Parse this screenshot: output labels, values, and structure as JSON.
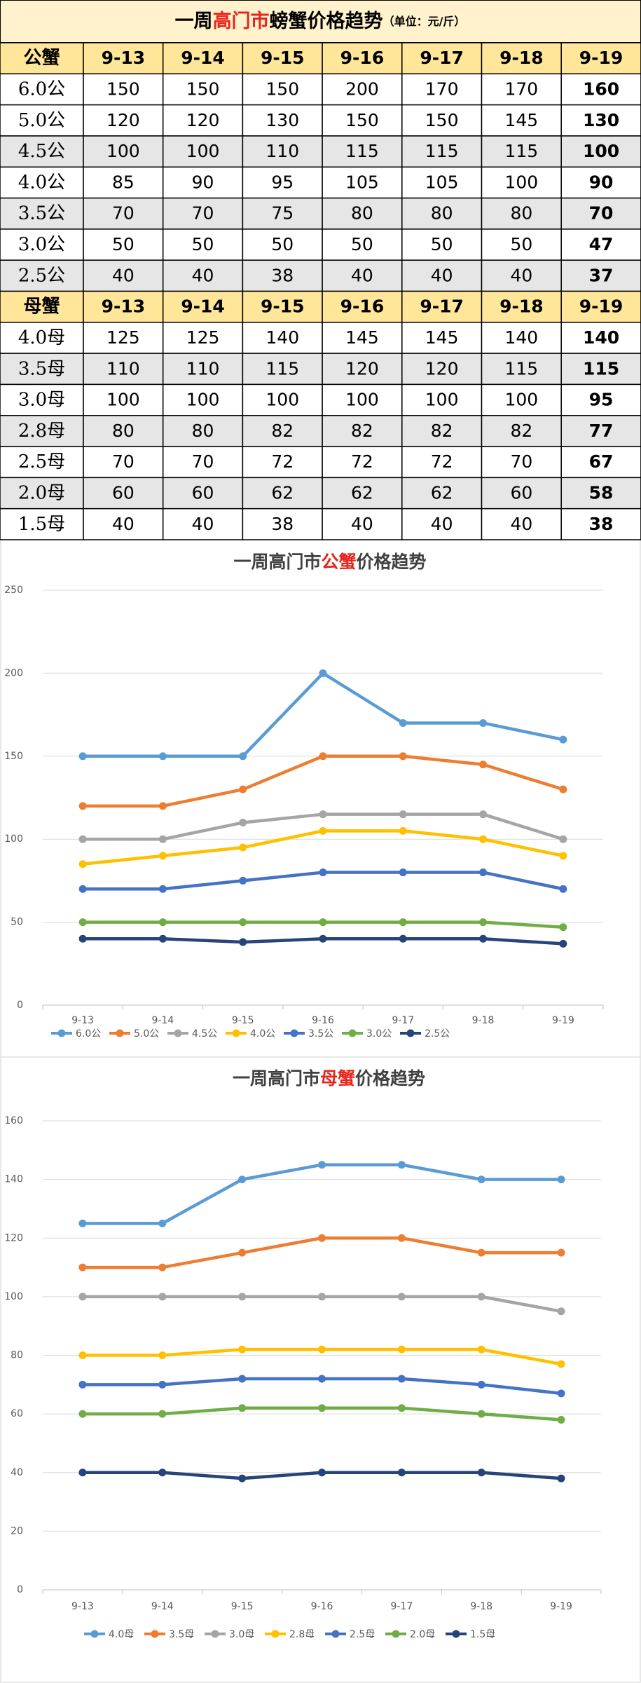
{
  "table": {
    "title_parts": [
      "一周",
      "高门市",
      "螃蟹价格趋势",
      "（单位：元/斤）"
    ],
    "rows": [
      [
        "公蟹",
        "9-13",
        "9-14",
        "9-15",
        "9-16",
        "9-17",
        "9-18",
        "9-19"
      ],
      [
        "6.0公",
        150,
        150,
        150,
        200,
        170,
        170,
        160
      ],
      [
        "5.0公",
        120,
        120,
        130,
        150,
        150,
        145,
        130
      ],
      [
        "4.5公",
        100,
        100,
        110,
        115,
        115,
        115,
        100
      ],
      [
        "4.0公",
        85,
        90,
        95,
        105,
        105,
        100,
        90
      ],
      [
        "3.5公",
        70,
        70,
        75,
        80,
        80,
        80,
        70
      ],
      [
        "3.0公",
        50,
        50,
        50,
        50,
        50,
        50,
        47
      ],
      [
        "2.5公",
        40,
        40,
        38,
        40,
        40,
        40,
        37
      ],
      [
        "母蟹",
        "9-13",
        "9-14",
        "9-15",
        "9-16",
        "9-17",
        "9-18",
        "9-19"
      ],
      [
        "4.0母",
        125,
        125,
        140,
        145,
        145,
        140,
        140
      ],
      [
        "3.5母",
        110,
        110,
        115,
        120,
        120,
        115,
        115
      ],
      [
        "3.0母",
        100,
        100,
        100,
        100,
        100,
        100,
        95
      ],
      [
        "2.8母",
        80,
        80,
        82,
        82,
        82,
        82,
        77
      ],
      [
        "2.5母",
        70,
        70,
        72,
        72,
        72,
        70,
        67
      ],
      [
        "2.0母",
        60,
        60,
        62,
        62,
        62,
        60,
        58
      ],
      [
        "1.5母",
        40,
        40,
        38,
        40,
        40,
        40,
        38
      ]
    ]
  },
  "chart_data": [
    {
      "type": "line",
      "title_parts": [
        "一周高门市",
        "公蟹",
        "价格趋势"
      ],
      "categories": [
        "9-13",
        "9-14",
        "9-15",
        "9-16",
        "9-17",
        "9-18",
        "9-19"
      ],
      "ylim": [
        0,
        250
      ],
      "yticks": [
        0,
        50,
        100,
        150,
        200,
        250
      ],
      "grid": true,
      "legend": "bottom",
      "series": [
        {
          "name": "6.0公",
          "color": "#5b9bd5",
          "values": [
            150,
            150,
            150,
            200,
            170,
            170,
            160
          ]
        },
        {
          "name": "5.0公",
          "color": "#ed7d31",
          "values": [
            120,
            120,
            130,
            150,
            150,
            145,
            130
          ]
        },
        {
          "name": "4.5公",
          "color": "#a5a5a5",
          "values": [
            100,
            100,
            110,
            115,
            115,
            115,
            100
          ]
        },
        {
          "name": "4.0公",
          "color": "#ffc000",
          "values": [
            85,
            90,
            95,
            105,
            105,
            100,
            90
          ]
        },
        {
          "name": "3.5公",
          "color": "#4472c4",
          "values": [
            70,
            70,
            75,
            80,
            80,
            80,
            70
          ]
        },
        {
          "name": "3.0公",
          "color": "#70ad47",
          "values": [
            50,
            50,
            50,
            50,
            50,
            50,
            47
          ]
        },
        {
          "name": "2.5公",
          "color": "#264478",
          "values": [
            40,
            40,
            38,
            40,
            40,
            40,
            37
          ]
        }
      ]
    },
    {
      "type": "line",
      "title_parts": [
        "一周高门市",
        "母蟹",
        "价格趋势"
      ],
      "categories": [
        "9-13",
        "9-14",
        "9-15",
        "9-16",
        "9-17",
        "9-18",
        "9-19"
      ],
      "ylim": [
        0,
        160
      ],
      "yticks": [
        0,
        20,
        40,
        60,
        80,
        100,
        120,
        140,
        160
      ],
      "grid": true,
      "legend": "bottom",
      "series": [
        {
          "name": "4.0母",
          "color": "#5b9bd5",
          "values": [
            125,
            125,
            140,
            145,
            145,
            140,
            140
          ]
        },
        {
          "name": "3.5母",
          "color": "#ed7d31",
          "values": [
            110,
            110,
            115,
            120,
            120,
            115,
            115
          ]
        },
        {
          "name": "3.0母",
          "color": "#a5a5a5",
          "values": [
            100,
            100,
            100,
            100,
            100,
            100,
            95
          ]
        },
        {
          "name": "2.8母",
          "color": "#ffc000",
          "values": [
            80,
            80,
            82,
            82,
            82,
            82,
            77
          ]
        },
        {
          "name": "2.5母",
          "color": "#4472c4",
          "values": [
            70,
            70,
            72,
            72,
            72,
            70,
            67
          ]
        },
        {
          "name": "2.0母",
          "color": "#70ad47",
          "values": [
            60,
            60,
            62,
            62,
            62,
            60,
            58
          ]
        },
        {
          "name": "1.5母",
          "color": "#264478",
          "values": [
            40,
            40,
            38,
            40,
            40,
            40,
            38
          ]
        }
      ]
    }
  ]
}
